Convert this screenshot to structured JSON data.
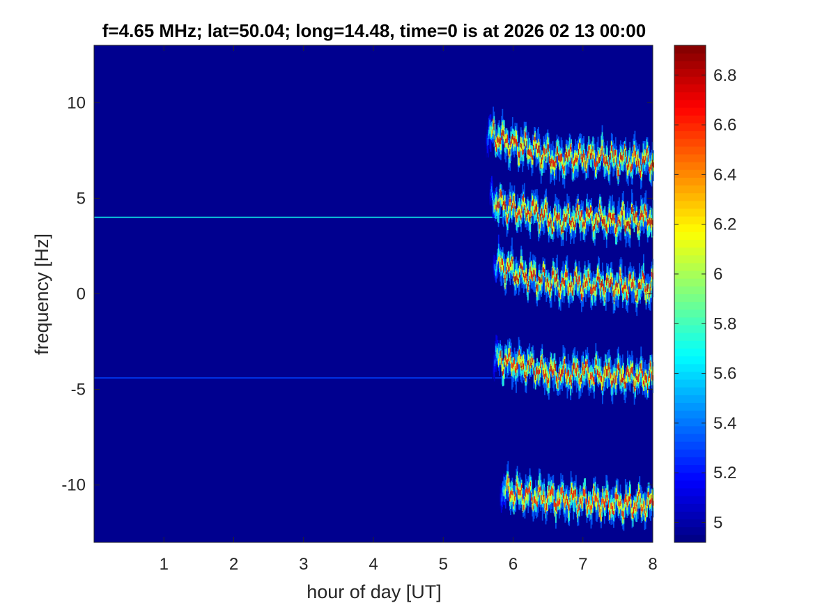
{
  "chart_data": {
    "type": "heatmap",
    "title": "f=4.65 MHz;  lat=50.04; long=14.48, time=0 is at 2026 02 13 00:00",
    "xlabel": "hour of day [UT]",
    "ylabel": "frequency [Hz]",
    "xlim": [
      0,
      8
    ],
    "ylim": [
      -13,
      13
    ],
    "xticks": [
      1,
      2,
      3,
      4,
      5,
      6,
      7,
      8
    ],
    "yticks": [
      -10,
      -5,
      0,
      5,
      10
    ],
    "grid": false,
    "colormap": "jet",
    "colorbar": {
      "placement": "right",
      "clim": [
        4.92,
        6.92
      ],
      "ticks": [
        5,
        5.2,
        5.4,
        5.6,
        5.8,
        6,
        6.2,
        6.4,
        6.6,
        6.8
      ]
    },
    "background_value": 4.95,
    "horizontal_lines": [
      {
        "freq": 4.0,
        "x_start": 0,
        "x_end": 6.0,
        "value": 5.7
      },
      {
        "freq": -4.4,
        "x_start": 0,
        "x_end": 6.0,
        "value": 5.3
      }
    ],
    "echo_traces": [
      {
        "x_start": 5.6,
        "x_end": 8.0,
        "path": [
          [
            5.6,
            8.5
          ],
          [
            6.0,
            7.8
          ],
          [
            6.3,
            7.5
          ],
          [
            6.6,
            7.0
          ],
          [
            7.0,
            7.2
          ],
          [
            7.5,
            7.0
          ],
          [
            8.0,
            6.9
          ]
        ],
        "peak_value": 6.85
      },
      {
        "x_start": 5.65,
        "x_end": 8.0,
        "path": [
          [
            5.65,
            5.0
          ],
          [
            6.0,
            4.4
          ],
          [
            6.3,
            4.3
          ],
          [
            6.6,
            3.8
          ],
          [
            7.0,
            4.0
          ],
          [
            7.5,
            3.8
          ],
          [
            8.0,
            4.0
          ]
        ],
        "peak_value": 6.85
      },
      {
        "x_start": 5.7,
        "x_end": 8.0,
        "path": [
          [
            5.7,
            1.6
          ],
          [
            6.0,
            1.2
          ],
          [
            6.3,
            0.8
          ],
          [
            6.6,
            0.6
          ],
          [
            7.0,
            0.5
          ],
          [
            7.5,
            0.4
          ],
          [
            8.0,
            0.4
          ]
        ],
        "peak_value": 6.85
      },
      {
        "x_start": 5.7,
        "x_end": 8.0,
        "path": [
          [
            5.7,
            -3.4
          ],
          [
            6.0,
            -3.6
          ],
          [
            6.3,
            -3.9
          ],
          [
            6.6,
            -4.2
          ],
          [
            7.0,
            -4.1
          ],
          [
            7.5,
            -4.3
          ],
          [
            8.0,
            -4.3
          ]
        ],
        "peak_value": 6.85
      },
      {
        "x_start": 5.8,
        "x_end": 8.0,
        "path": [
          [
            5.8,
            -10.2
          ],
          [
            6.0,
            -10.4
          ],
          [
            6.3,
            -10.6
          ],
          [
            6.6,
            -10.7
          ],
          [
            7.0,
            -10.8
          ],
          [
            7.5,
            -11.0
          ],
          [
            8.0,
            -11.0
          ]
        ],
        "peak_value": 6.75
      }
    ]
  }
}
